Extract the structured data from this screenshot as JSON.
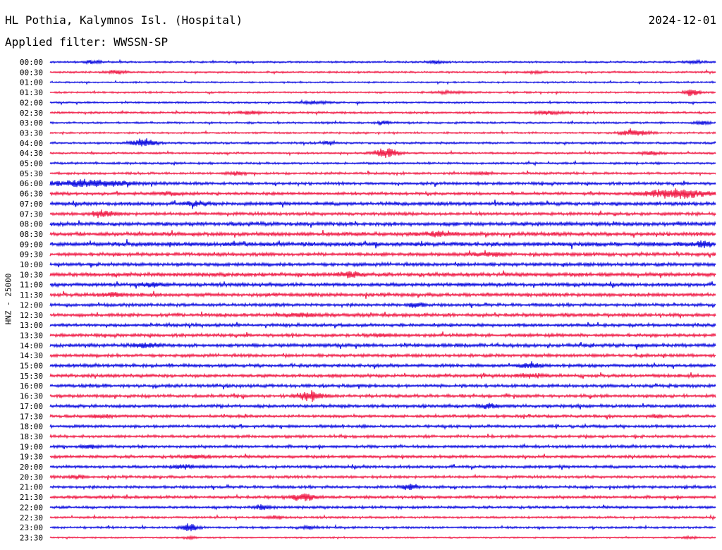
{
  "header": {
    "station": "HL Pothia, Kalymnos Isl. (Hospital)",
    "date": "2024-12-01",
    "filter": "Applied filter: WWSSN-SP"
  },
  "chart_data": {
    "type": "line",
    "ylabel": "HNZ - 25000",
    "colors": [
      "#1010e0",
      "#f0204a"
    ],
    "rows": [
      {
        "label": "00:00",
        "noise": 1.0,
        "events": [
          [
            0.065,
            0.2,
            2.5
          ],
          [
            0.58,
            0.2,
            2.0
          ],
          [
            0.97,
            0.25,
            2.0
          ]
        ]
      },
      {
        "label": "00:30",
        "noise": 1.0,
        "events": [
          [
            0.1,
            0.3,
            2.0
          ],
          [
            0.73,
            0.3,
            1.5
          ]
        ]
      },
      {
        "label": "01:00",
        "noise": 0.9,
        "events": []
      },
      {
        "label": "01:30",
        "noise": 1.0,
        "events": [
          [
            0.965,
            0.2,
            5.0
          ],
          [
            0.6,
            0.5,
            1.5
          ]
        ]
      },
      {
        "label": "02:00",
        "noise": 1.0,
        "events": [
          [
            0.4,
            0.4,
            1.5
          ]
        ]
      },
      {
        "label": "02:30",
        "noise": 1.2,
        "events": [
          [
            0.3,
            0.3,
            2.0
          ],
          [
            0.75,
            0.4,
            2.0
          ]
        ]
      },
      {
        "label": "03:00",
        "noise": 1.1,
        "events": [
          [
            0.5,
            0.2,
            2.5
          ],
          [
            0.98,
            0.2,
            2.5
          ]
        ]
      },
      {
        "label": "03:30",
        "noise": 1.0,
        "events": [
          [
            0.88,
            0.4,
            4.0
          ]
        ]
      },
      {
        "label": "04:00",
        "noise": 1.2,
        "events": [
          [
            0.14,
            0.3,
            5.5
          ],
          [
            0.42,
            0.2,
            2.0
          ]
        ]
      },
      {
        "label": "04:30",
        "noise": 1.1,
        "events": [
          [
            0.505,
            0.3,
            7.0
          ],
          [
            0.9,
            0.3,
            2.0
          ]
        ]
      },
      {
        "label": "05:00",
        "noise": 1.2,
        "events": []
      },
      {
        "label": "05:30",
        "noise": 1.3,
        "events": [
          [
            0.28,
            0.3,
            2.0
          ],
          [
            0.65,
            0.3,
            2.0
          ]
        ]
      },
      {
        "label": "06:00",
        "noise": 1.6,
        "events": [
          [
            0.06,
            1.2,
            4.0
          ]
        ]
      },
      {
        "label": "06:30",
        "noise": 1.6,
        "events": [
          [
            0.94,
            0.8,
            6.0
          ],
          [
            0.18,
            0.4,
            2.0
          ]
        ]
      },
      {
        "label": "07:00",
        "noise": 2.0,
        "events": [
          [
            0.22,
            0.3,
            2.5
          ]
        ]
      },
      {
        "label": "07:30",
        "noise": 1.8,
        "events": [
          [
            0.08,
            0.3,
            4.0
          ]
        ]
      },
      {
        "label": "08:00",
        "noise": 2.2,
        "events": []
      },
      {
        "label": "08:30",
        "noise": 2.2,
        "events": [
          [
            0.58,
            0.5,
            2.0
          ]
        ]
      },
      {
        "label": "09:00",
        "noise": 2.4,
        "events": [
          [
            0.98,
            0.2,
            4.0
          ]
        ]
      },
      {
        "label": "09:30",
        "noise": 2.0,
        "events": [
          [
            0.66,
            0.4,
            2.0
          ]
        ]
      },
      {
        "label": "10:00",
        "noise": 2.0,
        "events": []
      },
      {
        "label": "10:30",
        "noise": 2.2,
        "events": [
          [
            0.45,
            0.3,
            3.5
          ]
        ]
      },
      {
        "label": "11:00",
        "noise": 2.0,
        "events": [
          [
            0.15,
            0.3,
            2.5
          ]
        ]
      },
      {
        "label": "11:30",
        "noise": 2.0,
        "events": [
          [
            0.09,
            0.3,
            2.5
          ]
        ]
      },
      {
        "label": "12:00",
        "noise": 1.8,
        "events": [
          [
            0.55,
            0.2,
            3.0
          ]
        ]
      },
      {
        "label": "12:30",
        "noise": 2.0,
        "events": [
          [
            0.38,
            0.4,
            2.0
          ]
        ]
      },
      {
        "label": "13:00",
        "noise": 1.8,
        "events": []
      },
      {
        "label": "13:30",
        "noise": 1.8,
        "events": [
          [
            0.5,
            0.3,
            2.0
          ]
        ]
      },
      {
        "label": "14:00",
        "noise": 2.0,
        "events": [
          [
            0.15,
            0.4,
            2.5
          ]
        ]
      },
      {
        "label": "14:30",
        "noise": 1.8,
        "events": []
      },
      {
        "label": "15:00",
        "noise": 1.8,
        "events": [
          [
            0.72,
            0.3,
            2.5
          ]
        ]
      },
      {
        "label": "15:30",
        "noise": 1.8,
        "events": [
          [
            0.72,
            0.4,
            2.0
          ]
        ]
      },
      {
        "label": "16:00",
        "noise": 1.8,
        "events": []
      },
      {
        "label": "16:30",
        "noise": 1.8,
        "events": [
          [
            0.39,
            0.3,
            6.5
          ]
        ]
      },
      {
        "label": "17:00",
        "noise": 1.8,
        "events": [
          [
            0.66,
            0.3,
            2.5
          ]
        ]
      },
      {
        "label": "17:30",
        "noise": 1.6,
        "events": [
          [
            0.08,
            0.3,
            2.0
          ],
          [
            0.91,
            0.2,
            2.0
          ]
        ]
      },
      {
        "label": "18:00",
        "noise": 1.6,
        "events": []
      },
      {
        "label": "18:30",
        "noise": 1.6,
        "events": []
      },
      {
        "label": "19:00",
        "noise": 1.6,
        "events": [
          [
            0.06,
            0.2,
            2.5
          ]
        ]
      },
      {
        "label": "19:30",
        "noise": 1.6,
        "events": [
          [
            0.22,
            0.3,
            2.5
          ]
        ]
      },
      {
        "label": "20:00",
        "noise": 1.6,
        "events": [
          [
            0.2,
            0.3,
            2.5
          ]
        ]
      },
      {
        "label": "20:30",
        "noise": 1.5,
        "events": [
          [
            0.04,
            0.2,
            2.0
          ]
        ]
      },
      {
        "label": "21:00",
        "noise": 1.6,
        "events": [
          [
            0.54,
            0.2,
            4.0
          ]
        ]
      },
      {
        "label": "21:30",
        "noise": 1.6,
        "events": [
          [
            0.38,
            0.3,
            5.0
          ]
        ]
      },
      {
        "label": "22:00",
        "noise": 1.4,
        "events": [
          [
            0.32,
            0.2,
            3.0
          ]
        ]
      },
      {
        "label": "22:30",
        "noise": 1.2,
        "events": [
          [
            0.34,
            0.2,
            2.0
          ]
        ]
      },
      {
        "label": "23:00",
        "noise": 1.2,
        "events": [
          [
            0.21,
            0.2,
            5.0
          ],
          [
            0.39,
            0.2,
            2.0
          ]
        ]
      },
      {
        "label": "23:30",
        "noise": 0.8,
        "events": [
          [
            0.21,
            0.2,
            1.5
          ],
          [
            0.96,
            0.2,
            1.5
          ]
        ]
      }
    ]
  }
}
